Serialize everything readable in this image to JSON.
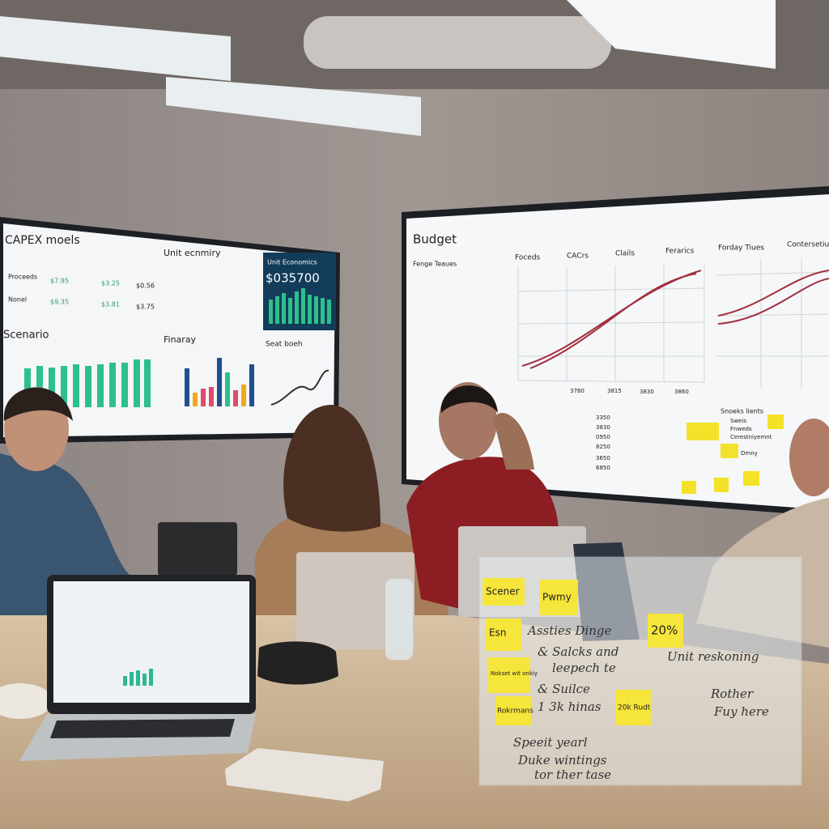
{
  "left_screen": {
    "panels": [
      "CAPEX moels",
      "Unit ecnmiry",
      "Unit Economics",
      "Scenario",
      "Finaray",
      "Seat boeh"
    ],
    "big_number": "$035700",
    "rows": [
      [
        "Proceeds",
        "$7.95",
        "$3.25",
        "$0.56"
      ],
      [
        "Nonel",
        "$9.35",
        "$3.81",
        "$3.75"
      ]
    ]
  },
  "right_screen": {
    "title": "Budget",
    "headers": [
      "Foceds",
      "CACrs",
      "Clails",
      "Ferarics",
      "Forday Tiues",
      "Contersetiue"
    ],
    "side_title": "Fenge Teaues",
    "notes_title": "Snoeks lients",
    "notes": [
      "Sweis",
      "Fnweds",
      "Cerestniyemnt",
      "Dmny"
    ],
    "axis_ticks": [
      "3780",
      "3815",
      "3830",
      "3860"
    ],
    "table_values": [
      "3350",
      "3830",
      "0950",
      "8250",
      "3650",
      "6850"
    ]
  },
  "glass_board": {
    "stickies": [
      "Scener",
      "Pwmy",
      "Esn",
      "Nokset wit onkiy",
      "Rokrmans",
      "20%",
      "20k Rudt"
    ],
    "writing": [
      "Assties Dinge",
      "& Salcks and",
      "leepech te",
      "& Suilce",
      "1 3k hinas",
      "Speeit yearl",
      "Duke wintings",
      "tor ther tase",
      "Unit reskoning",
      "Rother",
      "Fuy here"
    ]
  }
}
